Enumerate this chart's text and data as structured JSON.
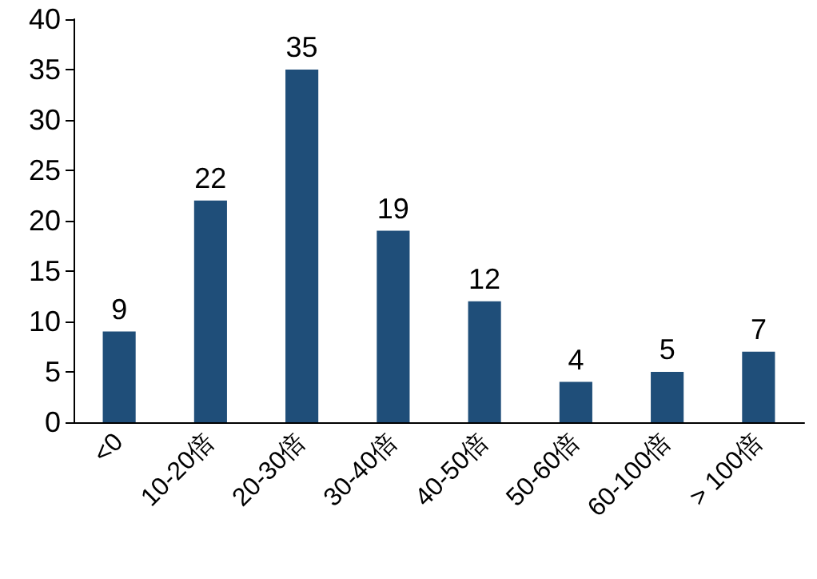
{
  "chart_data": {
    "type": "bar",
    "categories": [
      "<0",
      "10-20倍",
      "20-30倍",
      "30-40倍",
      "40-50倍",
      "50-60倍",
      "60-100倍",
      "> 100倍"
    ],
    "values": [
      9,
      22,
      35,
      19,
      12,
      4,
      5,
      7
    ],
    "color": "#1f4e79",
    "data_labels": true,
    "ylim": [
      0,
      40
    ],
    "yticks": [
      0,
      5,
      10,
      15,
      20,
      25,
      30,
      35,
      40
    ],
    "grid": false
  }
}
